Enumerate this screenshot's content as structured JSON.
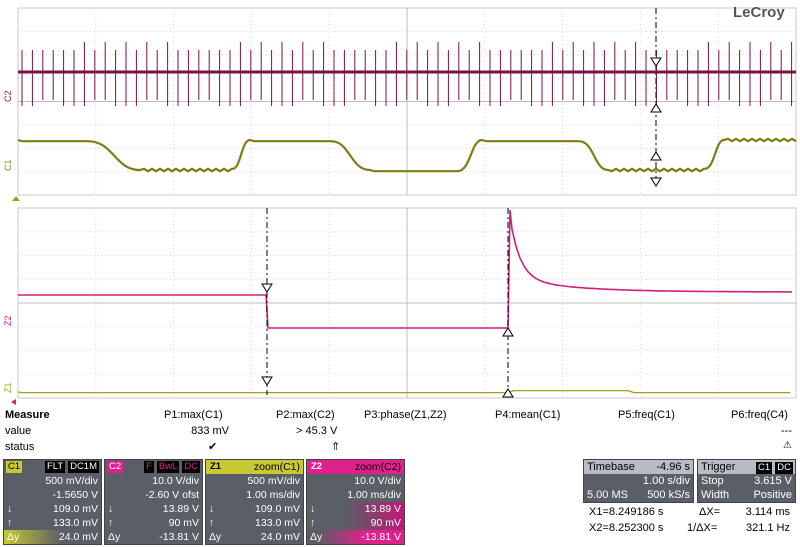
{
  "brand": "LeCroy",
  "trace_labels": {
    "c2": "C2",
    "c1": "C1",
    "z2": "Z2",
    "z1": "Z1"
  },
  "measure": {
    "header": "Measure",
    "rows": [
      "value",
      "status"
    ],
    "columns": [
      {
        "param": "P1:max(C1)",
        "value": "833 mV",
        "status": "✔"
      },
      {
        "param": "P2:max(C2)",
        "value": "> 45.3 V",
        "status": "⇑"
      },
      {
        "param": "P3:phase(Z1,Z2)",
        "value": "",
        "status": ""
      },
      {
        "param": "P4:mean(C1)",
        "value": "",
        "status": ""
      },
      {
        "param": "P5:freq(C1)",
        "value": "",
        "status": ""
      },
      {
        "param": "P6:freq(C4)",
        "value": "---",
        "status": "⚠"
      }
    ]
  },
  "channels": [
    {
      "id": "C1",
      "tags": [
        "FLT",
        "DC1M"
      ],
      "scale": "500 mV/div",
      "offset": "-1.5650 V",
      "down": "109.0 mV",
      "up": "133.0 mV",
      "delta": "24.0 mV",
      "color": "#b8b820"
    },
    {
      "id": "C2",
      "tags": [
        "F",
        "BwL",
        "DC"
      ],
      "scale": "10.0 V/div",
      "offset": "-2.60 V ofst",
      "down": "13.89 V",
      "up": "90 mV",
      "delta": "-13.81 V",
      "color": "#e0208c"
    },
    {
      "id": "Z1",
      "tags": [],
      "title": "zoom(C1)",
      "scale": "500 mV/div",
      "offset": "1.00 ms/div",
      "down": "109.0 mV",
      "up": "133.0 mV",
      "delta": "24.0 mV",
      "color": "#b8b820"
    },
    {
      "id": "Z2",
      "tags": [],
      "title": "zoom(C2)",
      "scale": "10.0 V/div",
      "offset": "1.00 ms/div",
      "down": "13.89 V",
      "up": "90 mV",
      "delta": "-13.81 V",
      "color": "#e0208c"
    }
  ],
  "timebase": {
    "label": "Timebase",
    "delay": "-4.96 s",
    "per_div": "1.00 s/div",
    "samples": "5.00 MS",
    "rate": "500 kS/s"
  },
  "trigger": {
    "label": "Trigger",
    "tags": [
      "C1",
      "DC"
    ],
    "mode": "Stop",
    "level": "3.615 V",
    "type": "Width",
    "slope": "Positive"
  },
  "cursors": {
    "x1_label": "X1=",
    "x1": "8.249186 s",
    "dx_label": "ΔX=",
    "dx": "3.114 ms",
    "x2_label": "X2=",
    "x2": "8.252300 s",
    "inv_label": "1/ΔX=",
    "inv": "321.1 Hz"
  },
  "colors": {
    "c2": "#8a1450",
    "c1": "#8a8a14",
    "z2": "#d0207a",
    "z1": "#a0a018",
    "grid": "#b0b0b0"
  }
}
